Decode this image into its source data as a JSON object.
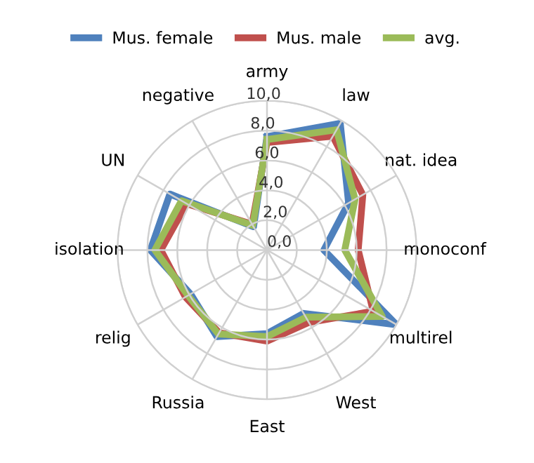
{
  "chart_data": {
    "type": "radar",
    "categories": [
      "army",
      "law",
      "nat. idea",
      "monoconf",
      "multirel",
      "West",
      "East",
      "Russia",
      "relig",
      "isolation",
      "UN",
      "negative"
    ],
    "series": [
      {
        "name": "Mus. female",
        "color": "#4f81bd",
        "values": [
          7.6,
          9.8,
          6.3,
          3.8,
          10.0,
          4.9,
          5.6,
          6.7,
          5.9,
          7.8,
          7.5,
          1.8
        ]
      },
      {
        "name": "Mus. male",
        "color": "#c0504d",
        "values": [
          7.2,
          8.8,
          7.4,
          6.1,
          8.2,
          5.6,
          6.1,
          6.4,
          6.3,
          7.1,
          6.2,
          2.0
        ]
      },
      {
        "name": "avg.",
        "color": "#9bbb59",
        "values": [
          7.4,
          9.3,
          6.8,
          5.2,
          8.9,
          5.2,
          5.8,
          6.5,
          6.1,
          7.5,
          6.6,
          1.9
        ]
      }
    ],
    "ylim": [
      0,
      10
    ],
    "yticks": [
      {
        "value": 0,
        "label": "0,0"
      },
      {
        "value": 2,
        "label": "2,0"
      },
      {
        "value": 4,
        "label": "4,0"
      },
      {
        "value": 6,
        "label": "6,0"
      },
      {
        "value": 8,
        "label": "8,0"
      },
      {
        "value": 10,
        "label": "10,0"
      }
    ],
    "grid": true,
    "legend": "top",
    "marker": "none",
    "line_style": "solid"
  }
}
